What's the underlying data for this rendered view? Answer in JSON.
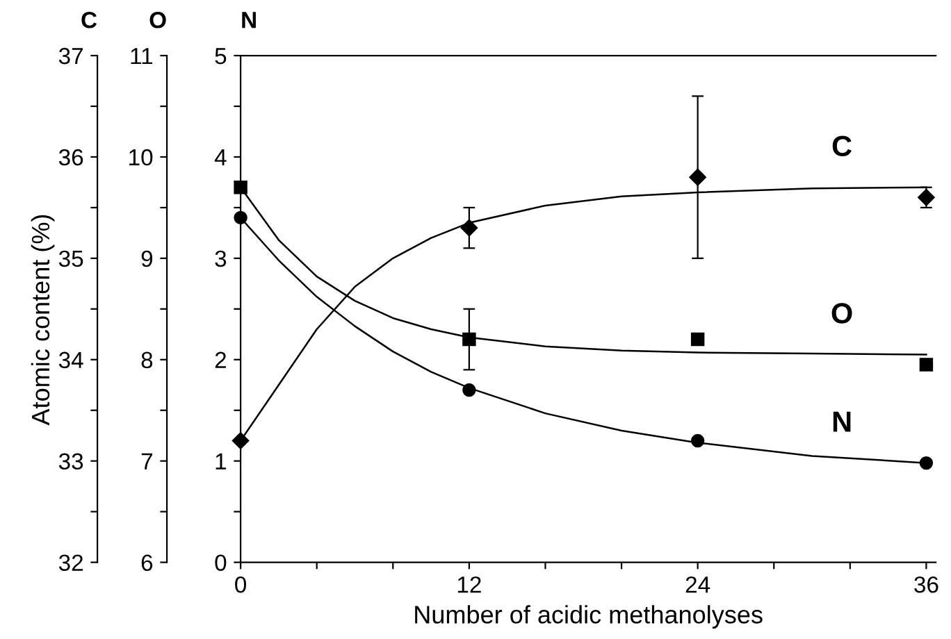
{
  "chart_data": {
    "type": "scatter",
    "xlabel": "Number of acidic methanolyses",
    "ylabel": "N",
    "y2label": "O",
    "y3label": "C",
    "annotations": [
      "Atomic content (%)"
    ],
    "xlim": [
      0,
      36.5
    ],
    "xticks": [
      0,
      {
        "value": 4,
        "label": null
      },
      {
        "value": 8,
        "label": null
      },
      12,
      {
        "value": 16,
        "label": null
      },
      {
        "value": 20,
        "label": null
      },
      24,
      {
        "value": 28,
        "label": null
      },
      {
        "value": 32,
        "label": null
      },
      36
    ],
    "ylim": [
      0,
      5
    ],
    "yticks": [
      0,
      {
        "value": 0.5,
        "label": null
      },
      1,
      {
        "value": 1.5,
        "label": null
      },
      2,
      {
        "value": 2.5,
        "label": null
      },
      3,
      {
        "value": 3.5,
        "label": null
      },
      4,
      {
        "value": 4.5,
        "label": null
      },
      5
    ],
    "y2lim": [
      6,
      11
    ],
    "y2ticks": [
      6,
      {
        "value": 6.5,
        "label": null
      },
      7,
      {
        "value": 7.5,
        "label": null
      },
      8,
      {
        "value": 8.5,
        "label": null
      },
      9,
      {
        "value": 9.5,
        "label": null
      },
      10,
      {
        "value": 10.5,
        "label": null
      },
      11
    ],
    "y3lim": [
      32,
      37
    ],
    "y3ticks": [
      32,
      {
        "value": 32.5,
        "label": null
      },
      33,
      {
        "value": 33.5,
        "label": null
      },
      34,
      {
        "value": 34.5,
        "label": null
      },
      35,
      {
        "value": 35.5,
        "label": null
      },
      36,
      {
        "value": 36.5,
        "label": null
      },
      37
    ],
    "grid": false,
    "legend": false,
    "series": [
      {
        "name": "C",
        "axis": "y3",
        "color": "#000000",
        "marker": "diamond",
        "x": [
          0,
          12,
          24,
          36
        ],
        "values": [
          33.2,
          35.3,
          35.8,
          35.6
        ],
        "errors": [
          null,
          0.2,
          0.8,
          0.1
        ]
      },
      {
        "type": "line",
        "axis": "y3",
        "color": "#000000",
        "x": [
          0,
          2,
          4,
          6,
          8,
          10,
          12,
          16,
          20,
          24,
          30,
          36
        ],
        "values": [
          33.2,
          33.75,
          34.3,
          34.72,
          35.0,
          35.2,
          35.35,
          35.52,
          35.61,
          35.65,
          35.69,
          35.7
        ]
      },
      {
        "name": "O",
        "axis": "y2",
        "color": "#000000",
        "marker": "square",
        "x": [
          0,
          12,
          24,
          36
        ],
        "values": [
          9.7,
          8.2,
          8.2,
          7.95
        ],
        "errors": [
          null,
          0.3,
          null,
          null
        ]
      },
      {
        "type": "line",
        "axis": "y2",
        "color": "#000000",
        "x": [
          0,
          2,
          4,
          6,
          8,
          10,
          12,
          16,
          20,
          24,
          30,
          36
        ],
        "values": [
          9.7,
          9.18,
          8.82,
          8.58,
          8.41,
          8.3,
          8.22,
          8.13,
          8.09,
          8.07,
          8.06,
          8.05
        ]
      },
      {
        "name": "N",
        "color": "#000000",
        "marker": "circle",
        "x": [
          0,
          12,
          24,
          36
        ],
        "values": [
          3.4,
          1.7,
          1.2,
          0.98
        ]
      },
      {
        "type": "line",
        "color": "#000000",
        "x": [
          0,
          2,
          4,
          6,
          8,
          10,
          12,
          16,
          20,
          24,
          30,
          36
        ],
        "values": [
          3.4,
          2.98,
          2.62,
          2.33,
          2.08,
          1.88,
          1.72,
          1.47,
          1.3,
          1.18,
          1.05,
          0.98
        ]
      }
    ]
  }
}
